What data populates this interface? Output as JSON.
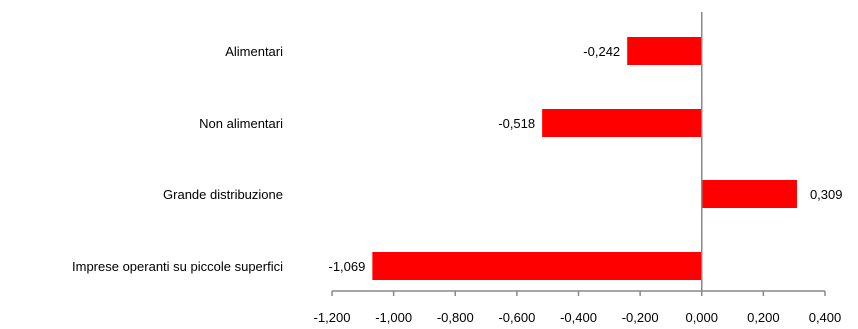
{
  "chart_data": {
    "type": "bar",
    "orientation": "horizontal",
    "categories": [
      "Alimentari",
      "Non alimentari",
      "Grande distribuzione",
      "Imprese operanti su piccole superfici"
    ],
    "values": [
      -0.242,
      -0.518,
      0.309,
      -1.069
    ],
    "data_labels": [
      "-0,242",
      "-0,518",
      "0,309",
      "-1,069"
    ],
    "xlim": [
      -1.2,
      0.4
    ],
    "ticks": [
      -1.2,
      -1.0,
      -0.8,
      -0.6,
      -0.4,
      -0.2,
      0.0,
      0.2,
      0.4
    ],
    "tick_labels": [
      "-1,200",
      "-1,000",
      "-0,800",
      "-0,600",
      "-0,400",
      "-0,200",
      "0,000",
      "0,200",
      "0,400"
    ],
    "bar_color": "#ff0000",
    "axis_color": "#888888",
    "grid": false,
    "legend": "none"
  }
}
